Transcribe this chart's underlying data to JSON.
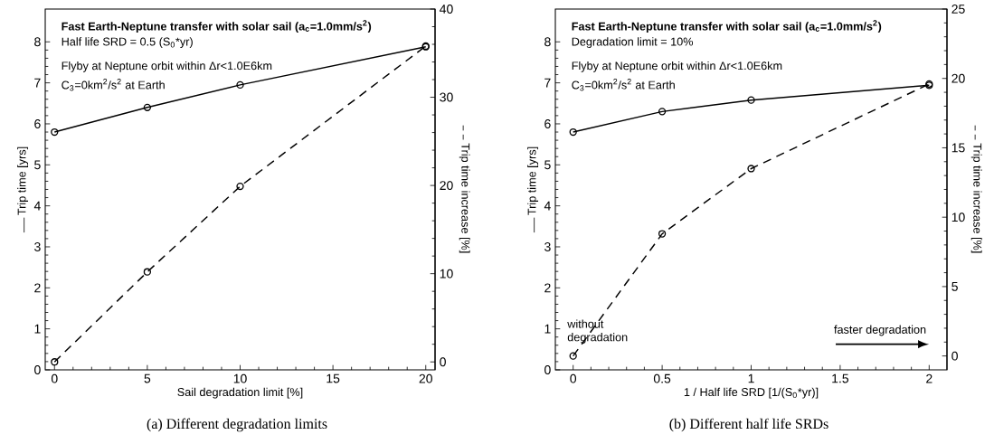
{
  "chart_data": [
    {
      "type": "line",
      "title": "Fast Earth-Neptune transfer with solar sail (a$_{c}$=1.0mm/s$^{2}$)",
      "subtitle": "(a) Different degradation limits",
      "xlabel": "Sail degradation limit [%]",
      "ylabel": "Trip time [yrs]",
      "y2label": "Trip time increase [%]",
      "annotations": [
        "Half life SRD = 0.5 (S$_{0}$*yr)",
        "Flyby at Neptune orbit within Δr<1.0E6km",
        "C$_{3}$=0km$^{2}$/s$^{2}$ at Earth"
      ],
      "x": [
        0,
        5,
        10,
        20
      ],
      "series": [
        {
          "color": "#000000",
          "line_style": "solid",
          "values": [
            5.8,
            6.4,
            6.95,
            7.88
          ]
        },
        {
          "color": "#000000",
          "line_style": "dashed",
          "axis": "y2",
          "values": [
            0,
            10.2,
            19.9,
            35.8
          ]
        }
      ],
      "marker": "circle",
      "xlim": [
        -0.5,
        20.5
      ],
      "xticks": [
        0,
        5,
        10,
        15,
        20
      ],
      "ylim": [
        0,
        8.8
      ],
      "yticks": [
        0,
        1,
        2,
        3,
        4,
        5,
        6,
        7,
        8
      ],
      "y2lim": [
        -0.9,
        40
      ],
      "y2ticks": [
        0,
        10,
        20,
        30,
        40
      ]
    },
    {
      "type": "line",
      "title": "Fast Earth-Neptune transfer with solar sail (a$_{c}$=1.0mm/s$^{2}$)",
      "subtitle": "(b) Different half life SRDs",
      "xlabel": "1 / Half life SRD [1/(S$_{0}$*yr)]",
      "ylabel": "Trip time [yrs]",
      "y2label": "Trip time increase [%]",
      "annotations": [
        "Degradation limit = 10%",
        "Flyby at Neptune orbit within Δr<1.0E6km",
        "C$_{3}$=0km$^{2}$/s$^{2}$ at Earth",
        "without degradation",
        "faster degradation"
      ],
      "x": [
        0,
        0.5,
        1,
        2
      ],
      "series": [
        {
          "color": "#000000",
          "line_style": "solid",
          "values": [
            5.8,
            6.3,
            6.58,
            6.94
          ]
        },
        {
          "color": "#000000",
          "line_style": "dashed",
          "axis": "y2",
          "values": [
            0,
            8.8,
            13.5,
            19.6
          ]
        }
      ],
      "marker": "circle",
      "xlim": [
        -0.1,
        2.1
      ],
      "xticks": [
        0,
        0.5,
        1,
        1.5,
        2
      ],
      "ylim": [
        0,
        8.8
      ],
      "yticks": [
        0,
        1,
        2,
        3,
        4,
        5,
        6,
        7,
        8
      ],
      "y2lim": [
        -1,
        25
      ],
      "y2ticks": [
        0,
        5,
        10,
        15,
        20,
        25
      ]
    }
  ]
}
